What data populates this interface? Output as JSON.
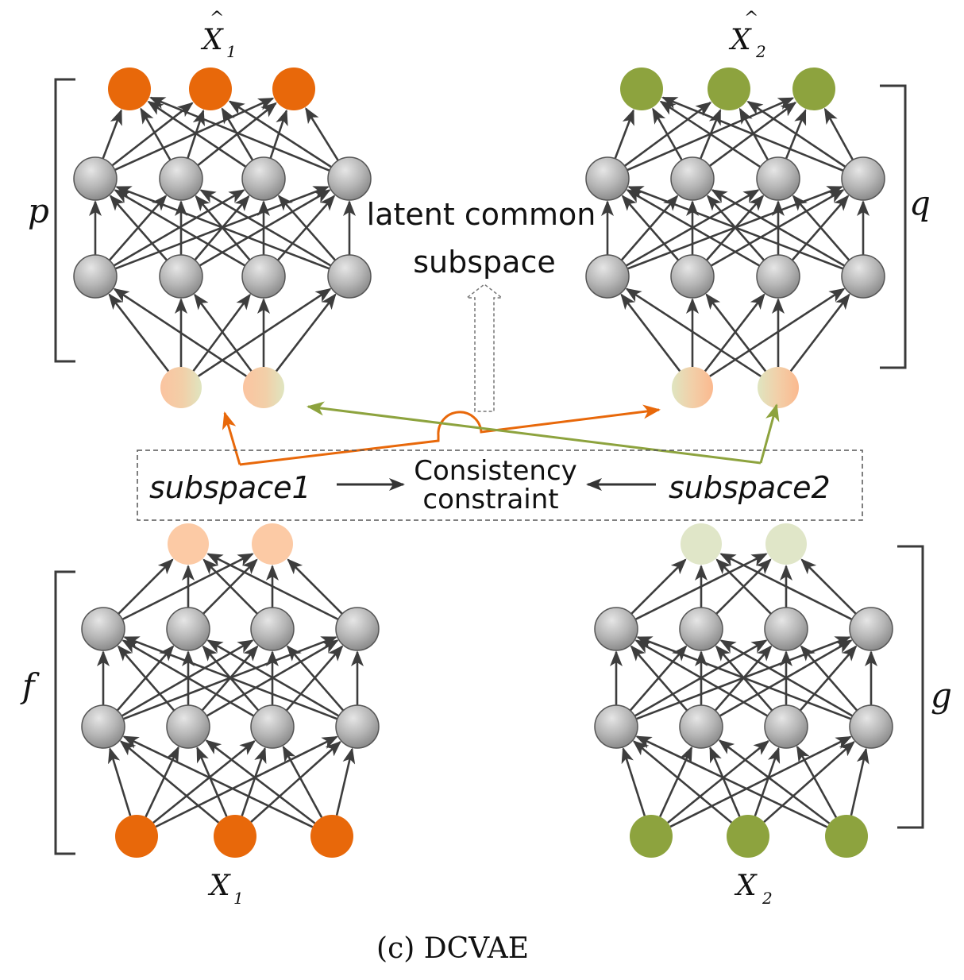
{
  "labels": {
    "x1_hat": "X",
    "x1_hat_sub": "1",
    "x2_hat": "X",
    "x2_hat_sub": "2",
    "hat_mark": "^",
    "x1": "X",
    "x1_sub": "1",
    "x2": "X",
    "x2_sub": "2",
    "p": "p",
    "q": "q",
    "f": "f",
    "g": "g",
    "latent_line1": "latent common",
    "latent_line2": "subspace",
    "subspace1": "subspace1",
    "subspace2": "subspace2",
    "consistency_line1": "Consistency",
    "consistency_line2": "constraint",
    "caption": "(c) DCVAE"
  },
  "colors": {
    "view1": "#e8680a",
    "view2": "#8da33e",
    "view1_code": "#fccaa5",
    "view2_code": "#e0e6c8",
    "hidden": "#b0b0b0",
    "edge": "#3d3d3d"
  },
  "networks": {
    "encoder_view1": {
      "layers": [
        3,
        4,
        4,
        2
      ]
    },
    "encoder_view2": {
      "layers": [
        3,
        4,
        4,
        2
      ]
    },
    "decoder_view1": {
      "layers": [
        2,
        4,
        4,
        3
      ]
    },
    "decoder_view2": {
      "layers": [
        2,
        4,
        4,
        3
      ]
    }
  }
}
